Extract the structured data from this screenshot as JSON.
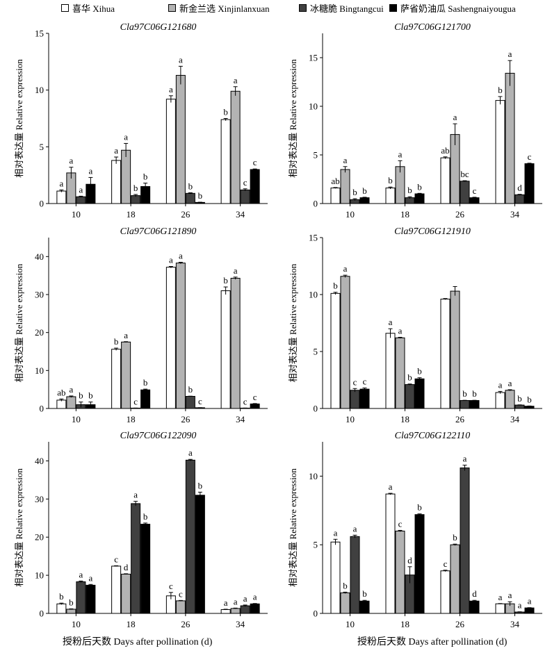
{
  "legend": [
    {
      "label": "喜华 Xihua",
      "color": "#ffffff"
    },
    {
      "label": "新金兰选 Xinjinlanxuan",
      "color": "#b3b3b3"
    },
    {
      "label": "冰糖脆 Bingtangcui",
      "color": "#404040"
    },
    {
      "label": "萨省奶油瓜 Sashengnaiyougua",
      "color": "#000000"
    }
  ],
  "xlabel_left": "授粉后天数 Days after pollination (d)",
  "xlabel_right": "授粉后天数 Days after pollination (d)",
  "chart_data": [
    {
      "type": "bar",
      "title": "Cla97C06G121680",
      "ylabel": "相对表达量 Relative expression",
      "categories": [
        "10",
        "18",
        "26",
        "34"
      ],
      "ylim": [
        0,
        15
      ],
      "yticks": [
        0,
        5,
        10,
        15
      ],
      "series": [
        {
          "name": "喜华 Xihua",
          "values": [
            1.1,
            3.8,
            9.2,
            7.4
          ],
          "errors": [
            0.1,
            0.3,
            0.3,
            0.1
          ],
          "letters": [
            "a",
            "a",
            "a",
            "b"
          ]
        },
        {
          "name": "新金兰选 Xinjinlanxuan",
          "values": [
            2.7,
            4.7,
            11.3,
            9.9
          ],
          "errors": [
            0.5,
            0.6,
            0.8,
            0.4
          ],
          "letters": [
            "a",
            "a",
            "a",
            "a"
          ]
        },
        {
          "name": "冰糖脆 Bingtangcui",
          "values": [
            0.6,
            0.7,
            0.9,
            1.2
          ],
          "errors": [
            0.05,
            0.1,
            0.05,
            0.1
          ],
          "letters": [
            "a",
            "b",
            "b",
            "c"
          ]
        },
        {
          "name": "萨省奶油瓜 Sashengnaiyougua",
          "values": [
            1.7,
            1.5,
            0.1,
            3.0
          ],
          "errors": [
            0.6,
            0.3,
            0.02,
            0.05
          ],
          "letters": [
            "a",
            "b",
            "b",
            "c"
          ]
        }
      ]
    },
    {
      "type": "bar",
      "title": "Cla97C06G121700",
      "ylabel": "相对表达量 Relative expression",
      "categories": [
        "10",
        "18",
        "26",
        "34"
      ],
      "ylim": [
        0,
        17.5
      ],
      "yticks": [
        0,
        5,
        10,
        15
      ],
      "series": [
        {
          "name": "喜华 Xihua",
          "values": [
            1.6,
            1.6,
            4.7,
            10.6
          ],
          "errors": [
            0.05,
            0.1,
            0.1,
            0.4
          ],
          "letters": [
            "ab",
            "b",
            "ab",
            "b"
          ]
        },
        {
          "name": "新金兰选 Xinjinlanxuan",
          "values": [
            3.5,
            3.8,
            7.1,
            13.4
          ],
          "errors": [
            0.3,
            0.6,
            1.1,
            1.3
          ],
          "letters": [
            "a",
            "a",
            "a",
            "a"
          ]
        },
        {
          "name": "冰糖脆 Bingtangcui",
          "values": [
            0.4,
            0.6,
            2.3,
            0.9
          ],
          "errors": [
            0.1,
            0.1,
            0.05,
            0.05
          ],
          "letters": [
            "b",
            "b",
            "bc",
            "d"
          ]
        },
        {
          "name": "萨省奶油瓜 Sashengnaiyougua",
          "values": [
            0.6,
            1.0,
            0.6,
            4.1
          ],
          "errors": [
            0.05,
            0.05,
            0.05,
            0.05
          ],
          "letters": [
            "b",
            "b",
            "c",
            "c"
          ]
        }
      ]
    },
    {
      "type": "bar",
      "title": "Cla97C06G121890",
      "ylabel": "相对表达量 Relative expression",
      "categories": [
        "10",
        "18",
        "26",
        "34"
      ],
      "ylim": [
        0,
        45
      ],
      "yticks": [
        0,
        10,
        20,
        30,
        40
      ],
      "series": [
        {
          "name": "喜华 Xihua",
          "values": [
            2.2,
            15.6,
            37.2,
            31.0
          ],
          "errors": [
            0.3,
            0.3,
            0.2,
            1.0
          ],
          "letters": [
            "ab",
            "b",
            "a",
            "b"
          ]
        },
        {
          "name": "新金兰选 Xinjinlanxuan",
          "values": [
            3.1,
            17.5,
            38.3,
            34.3
          ],
          "errors": [
            0.2,
            0.1,
            0.2,
            0.3
          ],
          "letters": [
            "a",
            "a",
            "a",
            "a"
          ]
        },
        {
          "name": "冰糖脆 Bingtangcui",
          "values": [
            1.0,
            0.1,
            3.2,
            0.1
          ],
          "errors": [
            0.7,
            0.02,
            0.05,
            0.02
          ],
          "letters": [
            "b",
            "c",
            "b",
            "c"
          ]
        },
        {
          "name": "萨省奶油瓜 Sashengnaiyougua",
          "values": [
            1.0,
            4.9,
            0.2,
            1.2
          ],
          "errors": [
            0.7,
            0.2,
            0.02,
            0.1
          ],
          "letters": [
            "b",
            "b",
            "c",
            "c"
          ]
        }
      ]
    },
    {
      "type": "bar",
      "title": "Cla97C06G121910",
      "ylabel": "相对表达量 Relative expression",
      "categories": [
        "10",
        "18",
        "26",
        "34"
      ],
      "ylim": [
        0,
        15
      ],
      "yticks": [
        0,
        5,
        10,
        15
      ],
      "series": [
        {
          "name": "喜华 Xihua",
          "values": [
            10.1,
            6.6,
            9.6,
            1.4
          ],
          "errors": [
            0.1,
            0.4,
            0.05,
            0.1
          ],
          "letters": [
            "b",
            "a",
            "",
            "a"
          ]
        },
        {
          "name": "新金兰选 Xinjinlanxuan",
          "values": [
            11.6,
            6.2,
            10.3,
            1.6
          ],
          "errors": [
            0.1,
            0.05,
            0.4,
            0.05
          ],
          "letters": [
            "a",
            "a",
            "",
            "a"
          ]
        },
        {
          "name": "冰糖脆 Bingtangcui",
          "values": [
            1.6,
            2.1,
            0.7,
            0.3
          ],
          "errors": [
            0.15,
            0.05,
            0.02,
            0.02
          ],
          "letters": [
            "c",
            "b",
            "b",
            "b"
          ]
        },
        {
          "name": "萨省奶油瓜 Sashengnaiyougua",
          "values": [
            1.7,
            2.6,
            0.7,
            0.2
          ],
          "errors": [
            0.1,
            0.1,
            0.02,
            0.02
          ],
          "letters": [
            "c",
            "b",
            "b",
            "b"
          ]
        }
      ]
    },
    {
      "type": "bar",
      "title": "Cla97C06G122090",
      "ylabel": "相对表达量 Relative expression",
      "categories": [
        "10",
        "18",
        "26",
        "34"
      ],
      "ylim": [
        0,
        45
      ],
      "yticks": [
        0,
        10,
        20,
        30,
        40
      ],
      "series": [
        {
          "name": "喜华 Xihua",
          "values": [
            2.5,
            12.4,
            4.6,
            1.0
          ],
          "errors": [
            0.2,
            0.1,
            0.9,
            0.1
          ],
          "letters": [
            "b",
            "c",
            "c",
            "a"
          ]
        },
        {
          "name": "新金兰选 Xinjinlanxuan",
          "values": [
            1.1,
            10.3,
            3.3,
            1.3
          ],
          "errors": [
            0.1,
            0.1,
            0.1,
            0.1
          ],
          "letters": [
            "b",
            "d",
            "c",
            "a"
          ]
        },
        {
          "name": "冰糖脆 Bingtangcui",
          "values": [
            8.3,
            28.8,
            40.2,
            2.0
          ],
          "errors": [
            0.2,
            0.6,
            0.2,
            0.2
          ],
          "letters": [
            "a",
            "a",
            "a",
            "a"
          ]
        },
        {
          "name": "萨省奶油瓜 Sashengnaiyougua",
          "values": [
            7.4,
            23.4,
            31.0,
            2.5
          ],
          "errors": [
            0.2,
            0.3,
            0.8,
            0.1
          ],
          "letters": [
            "a",
            "b",
            "b",
            "a"
          ]
        }
      ]
    },
    {
      "type": "bar",
      "title": "Cla97C06G122110",
      "ylabel": "相对表达量 Relative expression",
      "categories": [
        "10",
        "18",
        "26",
        "34"
      ],
      "ylim": [
        0,
        12.5
      ],
      "yticks": [
        0,
        5,
        10
      ],
      "series": [
        {
          "name": "喜华 Xihua",
          "values": [
            5.2,
            8.7,
            3.1,
            0.7
          ],
          "errors": [
            0.2,
            0.05,
            0.05,
            0.02
          ],
          "letters": [
            "a",
            "a",
            "c",
            "a"
          ]
        },
        {
          "name": "新金兰选 Xinjinlanxuan",
          "values": [
            1.5,
            6.0,
            5.0,
            0.7
          ],
          "errors": [
            0.05,
            0.05,
            0.05,
            0.15
          ],
          "letters": [
            "b",
            "c",
            "b",
            "a"
          ]
        },
        {
          "name": "冰糖脆 Bingtangcui",
          "values": [
            5.6,
            2.8,
            10.6,
            0.1
          ],
          "errors": [
            0.1,
            0.6,
            0.2,
            0.02
          ],
          "letters": [
            "a",
            "d",
            "a",
            "a"
          ]
        },
        {
          "name": "萨省奶油瓜 Sashengnaiyougua",
          "values": [
            0.9,
            7.2,
            0.9,
            0.4
          ],
          "errors": [
            0.05,
            0.05,
            0.05,
            0.02
          ],
          "letters": [
            "b",
            "b",
            "d",
            "a"
          ]
        }
      ]
    }
  ]
}
